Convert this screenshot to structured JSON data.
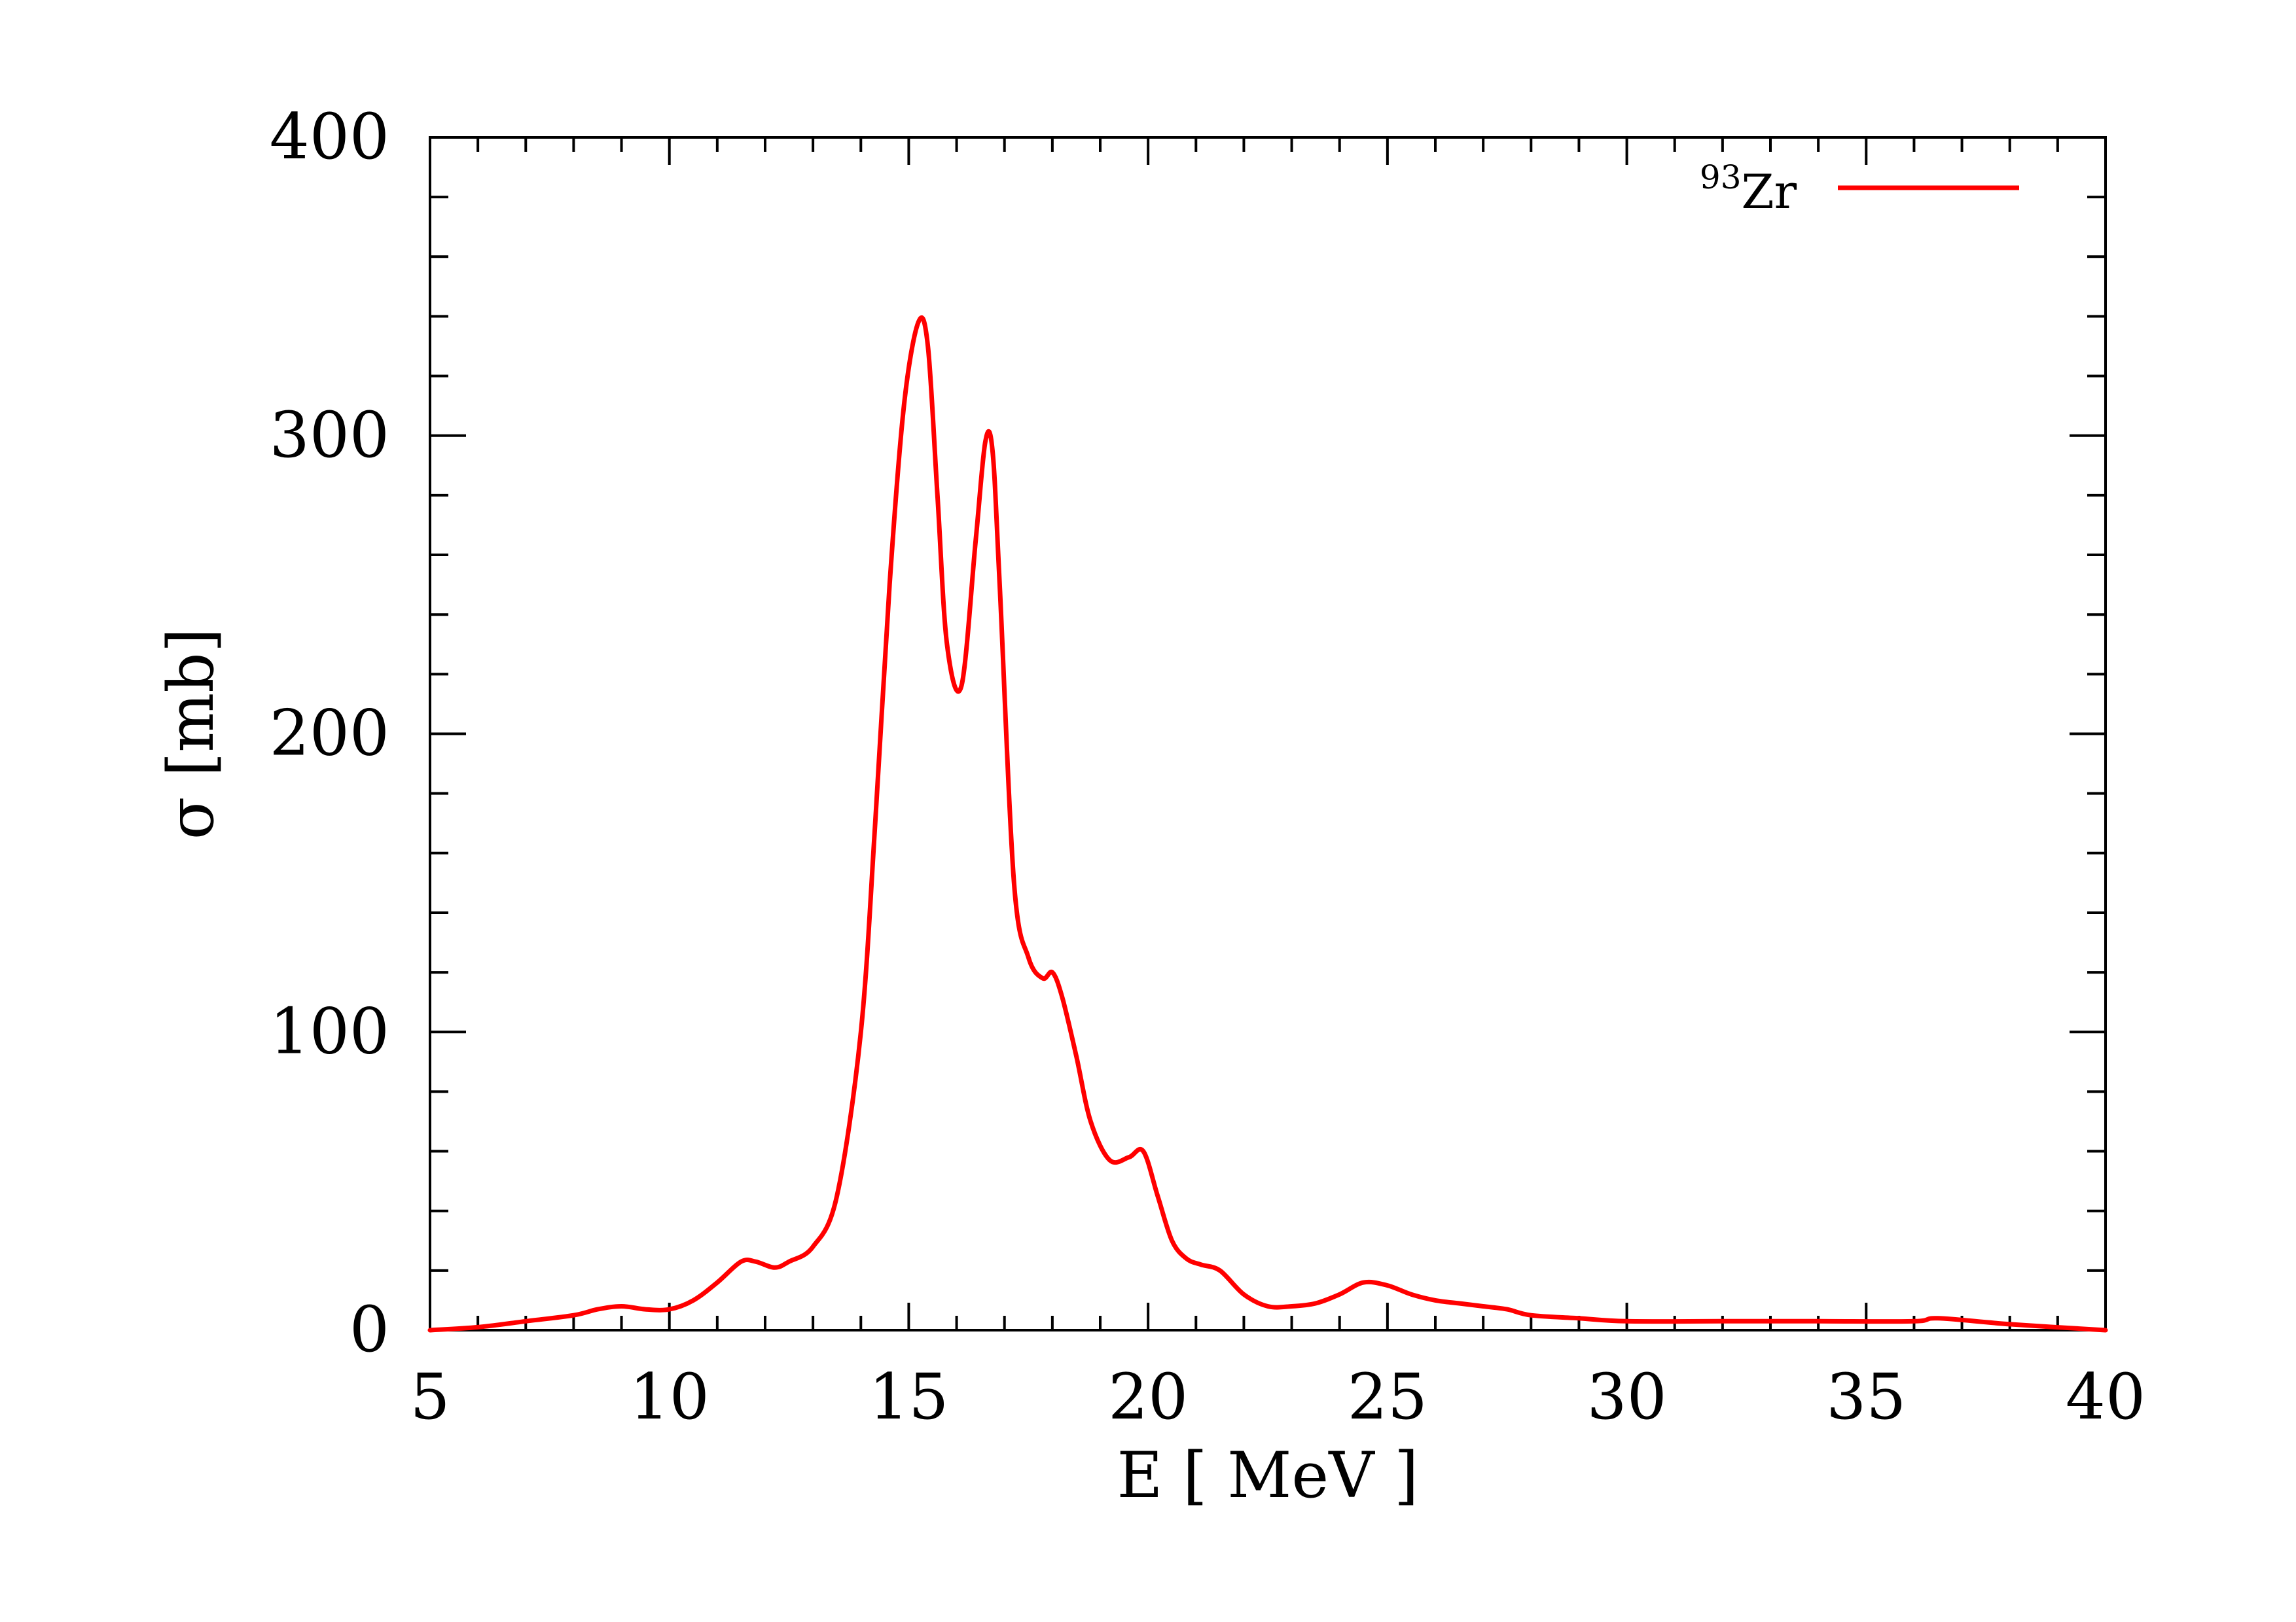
{
  "chart_data": {
    "type": "line",
    "title": "",
    "xlabel": "E [ MeV ]",
    "ylabel": "σ [mb]",
    "xlim": [
      5,
      40
    ],
    "ylim": [
      0,
      400
    ],
    "x_ticks": [
      "5",
      "10",
      "15",
      "20",
      "25",
      "30",
      "35",
      "40"
    ],
    "y_ticks": [
      "0",
      "100",
      "200",
      "300",
      "400"
    ],
    "grid": false,
    "legend_position": "top-right",
    "series": [
      {
        "name_superscript": "93",
        "name_base": "Zr",
        "color": "#ff0000",
        "x": [
          5,
          6,
          7,
          8,
          8.5,
          9,
          9.5,
          10,
          10.5,
          11,
          11.5,
          11.8,
          12.2,
          12.5,
          13,
          13.5,
          14,
          14.3,
          14.6,
          14.9,
          15.2,
          15.4,
          15.6,
          15.8,
          16.1,
          16.4,
          16.6,
          16.75,
          16.9,
          17.2,
          17.5,
          17.8,
          18,
          18.2,
          18.5,
          18.8,
          19.2,
          19.6,
          19.9,
          20.2,
          20.5,
          20.8,
          21.1,
          21.5,
          22,
          22.5,
          23,
          23.5,
          24,
          24.5,
          25,
          25.5,
          26,
          26.5,
          27,
          27.5,
          28,
          29,
          30,
          32,
          34,
          36,
          36.5,
          38,
          40
        ],
        "y": [
          0,
          1,
          3,
          5,
          7,
          8,
          7,
          7,
          10,
          16,
          23,
          23,
          21,
          23,
          28,
          45,
          100,
          170,
          250,
          310,
          338,
          330,
          280,
          230,
          216,
          265,
          298,
          295,
          250,
          150,
          125,
          118,
          120,
          112,
          92,
          70,
          57,
          58,
          60,
          45,
          30,
          24,
          22,
          20,
          12,
          8,
          8,
          9,
          12,
          16,
          15,
          12,
          10,
          9,
          8,
          7,
          5,
          4,
          3,
          3,
          3,
          3,
          4,
          2,
          0
        ]
      }
    ]
  }
}
